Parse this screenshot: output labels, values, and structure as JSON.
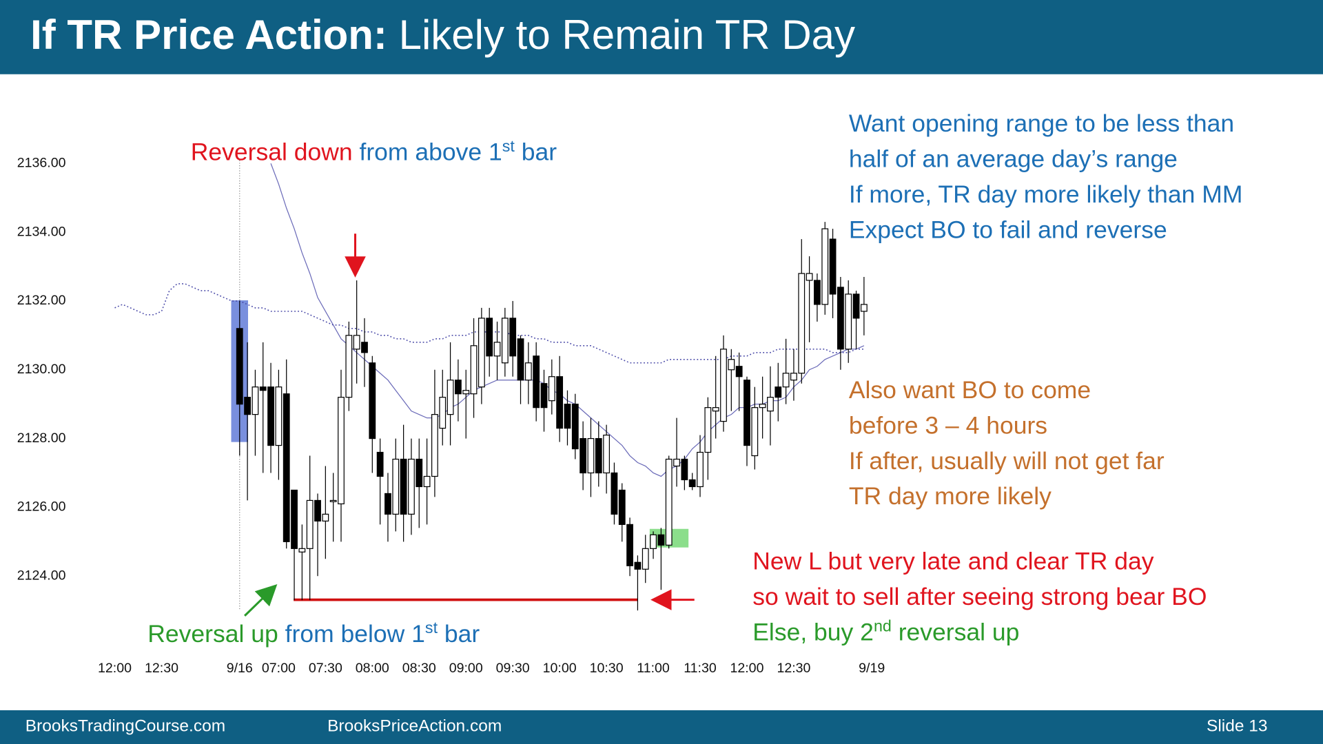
{
  "slide": {
    "title_bold": "If TR Price Action:",
    "title_rest": "Likely to Remain TR Day",
    "footer_left": "BrooksTradingCourse.com",
    "footer_middle": "BrooksPriceAction.com",
    "footer_right": "Slide  13"
  },
  "chart_data": {
    "type": "candlestick",
    "categories": [
      "12:00",
      null,
      null,
      null,
      null,
      null,
      "12:30",
      null,
      null,
      null,
      null,
      null,
      null,
      null,
      null,
      null,
      "9/16",
      null,
      null,
      null,
      null,
      "07:00",
      null,
      null,
      null,
      null,
      null,
      "07:30",
      null,
      null,
      null,
      null,
      null,
      "08:00",
      null,
      null,
      null,
      null,
      null,
      "08:30",
      null,
      null,
      null,
      null,
      null,
      "09:00",
      null,
      null,
      null,
      null,
      null,
      "09:30",
      null,
      null,
      null,
      null,
      null,
      "10:00",
      null,
      null,
      null,
      null,
      null,
      "10:30",
      null,
      null,
      null,
      null,
      null,
      "11:00",
      null,
      null,
      null,
      null,
      null,
      "11:30",
      null,
      null,
      null,
      null,
      null,
      "12:00",
      null,
      null,
      null,
      null,
      null,
      "12:30",
      null,
      null,
      null,
      null,
      null,
      null,
      null,
      null,
      null,
      "9/19"
    ],
    "open": [
      null,
      null,
      null,
      null,
      null,
      null,
      null,
      null,
      null,
      null,
      null,
      null,
      null,
      null,
      null,
      null,
      2131.2,
      2129.2,
      2128.7,
      2129.5,
      2129.5,
      2127.8,
      2129.3,
      2126.5,
      2124.7,
      2124.8,
      2126.2,
      2125.6,
      2126.2,
      2126.1,
      2129.2,
      2130.6,
      2130.8,
      2130.2,
      2127.6,
      2126.4,
      2125.8,
      2127.4,
      2125.8,
      2127.4,
      2126.6,
      2126.9,
      2128.3,
      2128.7,
      2129.7,
      2129.3,
      2129.3,
      2129.5,
      2131.5,
      2130.4,
      2130.2,
      2131.5,
      2130.9,
      2129.7,
      2130.4,
      2129.6,
      2129.1,
      2129.8,
      2129.0,
      2129.0,
      2128.0,
      2127.0,
      2128.0,
      2127.0,
      2127.0,
      2126.5,
      2125.5,
      2124.4,
      2124.2,
      2124.8,
      2125.2,
      2124.9,
      2127.2,
      2127.4,
      2126.8,
      2126.6,
      2127.6,
      2128.8,
      2128.5,
      2130.0,
      2130.1,
      2129.7,
      2127.5,
      2128.9,
      2128.8,
      2129.5,
      2129.5,
      2129.7,
      2129.9,
      2132.6,
      2132.6,
      2131.9,
      2133.8,
      2132.4,
      2130.6,
      2132.2,
      2131.7,
      null
    ],
    "high": [
      null,
      null,
      null,
      null,
      null,
      null,
      null,
      null,
      null,
      null,
      null,
      null,
      null,
      null,
      null,
      null,
      2132.0,
      2130.8,
      2130.0,
      2130.8,
      2130.2,
      2130.0,
      2130.3,
      2126.5,
      2125.5,
      2127.5,
      2126.4,
      2127.2,
      2127.0,
      2130.0,
      2131.4,
      2132.6,
      2131.5,
      2130.4,
      2128.0,
      2127.0,
      2128.0,
      2128.4,
      2128.0,
      2128.0,
      2128.0,
      2130.0,
      2130.0,
      2130.8,
      2130.3,
      2130.0,
      2131.5,
      2131.8,
      2131.8,
      2131.4,
      2131.8,
      2132.0,
      2131.0,
      2130.8,
      2130.8,
      2130.0,
      2130.3,
      2130.4,
      2129.4,
      2129.3,
      2128.5,
      2128.6,
      2128.5,
      2128.4,
      2127.3,
      2126.7,
      2125.7,
      2124.6,
      2125.2,
      2125.3,
      2125.4,
      2127.5,
      2128.6,
      2127.5,
      2127.0,
      2128.1,
      2129.2,
      2130.4,
      2131.0,
      2130.6,
      2130.5,
      2129.8,
      2129.5,
      2129.8,
      2130.1,
      2130.2,
      2130.9,
      2130.6,
      2133.8,
      2133.3,
      2132.8,
      2134.3,
      2134.1,
      2132.7,
      2132.6,
      2132.3,
      2132.7,
      null
    ],
    "low": [
      null,
      null,
      null,
      null,
      null,
      null,
      null,
      null,
      null,
      null,
      null,
      null,
      null,
      null,
      null,
      null,
      2127.5,
      2126.2,
      2127.5,
      2127.0,
      2127.0,
      2126.8,
      2124.8,
      2123.3,
      2123.3,
      2123.3,
      2124.0,
      2124.5,
      2125.0,
      2125.0,
      2128.8,
      2129.6,
      2129.5,
      2127.0,
      2125.5,
      2125.0,
      2125.3,
      2125.0,
      2125.2,
      2125.4,
      2125.5,
      2126.3,
      2127.8,
      2127.8,
      2128.5,
      2128.0,
      2128.6,
      2129.0,
      2129.8,
      2129.7,
      2129.8,
      2129.8,
      2129.0,
      2129.0,
      2128.5,
      2128.2,
      2128.7,
      2127.9,
      2127.8,
      2127.4,
      2126.5,
      2126.3,
      2126.6,
      2126.4,
      2125.5,
      2125.0,
      2124.0,
      2123.0,
      2123.8,
      2124.5,
      2123.6,
      2124.8,
      2126.6,
      2126.5,
      2126.5,
      2126.3,
      2126.8,
      2128.0,
      2128.2,
      2128.8,
      2128.8,
      2127.2,
      2127.1,
      2128.0,
      2127.8,
      2128.5,
      2129.0,
      2129.1,
      2129.6,
      2130.8,
      2131.4,
      2131.6,
      2131.5,
      2130.0,
      2130.2,
      2130.6,
      2131.0,
      null
    ],
    "close": [
      null,
      null,
      null,
      null,
      null,
      null,
      null,
      null,
      null,
      null,
      null,
      null,
      null,
      null,
      null,
      null,
      2129.0,
      2128.7,
      2129.5,
      2129.4,
      2127.8,
      2129.5,
      2125.0,
      2124.8,
      2124.8,
      2126.2,
      2125.6,
      2125.8,
      2126.2,
      2129.2,
      2131.0,
      2131.0,
      2130.5,
      2128.0,
      2126.9,
      2125.8,
      2127.4,
      2125.8,
      2127.4,
      2126.6,
      2126.9,
      2128.7,
      2129.2,
      2129.7,
      2129.3,
      2129.4,
      2130.7,
      2131.5,
      2130.4,
      2130.8,
      2131.5,
      2130.4,
      2129.7,
      2130.2,
      2128.9,
      2128.9,
      2129.8,
      2128.3,
      2128.3,
      2127.7,
      2127.0,
      2128.0,
      2127.0,
      2128.1,
      2125.8,
      2125.5,
      2124.3,
      2124.2,
      2124.8,
      2125.2,
      2124.9,
      2127.4,
      2127.4,
      2126.8,
      2126.6,
      2127.6,
      2128.9,
      2128.9,
      2130.6,
      2130.3,
      2129.8,
      2127.8,
      2128.9,
      2129.0,
      2129.2,
      2129.2,
      2129.9,
      2129.9,
      2132.8,
      2132.8,
      2131.9,
      2134.1,
      2132.2,
      2130.6,
      2132.2,
      2131.5,
      2131.9,
      null
    ],
    "up_color": "#ffffff",
    "down_color": "#000000",
    "lines": [
      {
        "color": "#6a6ab8",
        "style": "solid",
        "values": [
          null,
          null,
          null,
          null,
          null,
          null,
          null,
          null,
          null,
          null,
          null,
          null,
          null,
          null,
          null,
          null,
          null,
          null,
          null,
          null,
          2136.0,
          2135.4,
          2134.7,
          2134.1,
          2133.4,
          2132.8,
          2132.1,
          2131.7,
          2131.3,
          2130.9,
          2130.7,
          2130.5,
          2130.3,
          2130.1,
          2129.9,
          2129.7,
          2129.4,
          2129.1,
          2128.8,
          2128.7,
          2128.6,
          2128.6,
          2128.7,
          2128.9,
          2129.0,
          2129.2,
          2129.4,
          2129.5,
          2129.6,
          2129.7,
          2129.7,
          2129.7,
          2129.7,
          2129.7,
          2129.7,
          2129.6,
          2129.4,
          2129.3,
          2129.1,
          2129.0,
          2128.8,
          2128.6,
          2128.4,
          2128.2,
          2128.0,
          2127.8,
          2127.5,
          2127.3,
          2127.2,
          2127.0,
          2126.9,
          2127.1,
          2127.2,
          2127.4,
          2127.7,
          2127.9,
          2128.2,
          2128.4,
          2128.6,
          2128.7,
          2128.9,
          2128.9,
          2129.0,
          2129.0,
          2129.1,
          2129.1,
          2129.2,
          2129.5,
          2129.7,
          2130.0,
          2130.1,
          2130.3,
          2130.4,
          2130.5,
          2130.6,
          2130.6,
          2130.7,
          null
        ]
      },
      {
        "color": "#4a4aa8",
        "style": "dotted",
        "values": [
          2131.8,
          2131.9,
          2131.8,
          2131.7,
          2131.6,
          2131.6,
          2131.7,
          2132.3,
          2132.5,
          2132.5,
          2132.4,
          2132.3,
          2132.3,
          2132.2,
          2132.1,
          2132.0,
          2132.0,
          2131.9,
          2131.8,
          2131.8,
          2131.7,
          2131.7,
          2131.7,
          2131.7,
          2131.7,
          2131.6,
          2131.5,
          2131.4,
          2131.3,
          2131.3,
          2131.2,
          2131.2,
          2131.1,
          2131.1,
          2131.0,
          2131.0,
          2130.9,
          2130.9,
          2130.8,
          2130.8,
          2130.8,
          2130.9,
          2130.9,
          2131.0,
          2131.0,
          2131.0,
          2131.1,
          2131.1,
          2131.1,
          2131.1,
          2131.1,
          2131.0,
          2131.0,
          2131.0,
          2130.9,
          2130.9,
          2130.8,
          2130.8,
          2130.8,
          2130.7,
          2130.7,
          2130.7,
          2130.6,
          2130.5,
          2130.4,
          2130.3,
          2130.2,
          2130.2,
          2130.2,
          2130.2,
          2130.2,
          2130.3,
          2130.3,
          2130.3,
          2130.3,
          2130.3,
          2130.3,
          2130.3,
          2130.3,
          2130.4,
          2130.4,
          2130.4,
          2130.5,
          2130.5,
          2130.5,
          2130.6,
          2130.6,
          2130.6,
          2130.6,
          2130.6,
          2130.6,
          2130.6,
          2130.5,
          2130.5,
          2130.5,
          2130.6,
          2130.6,
          null
        ]
      }
    ],
    "ylim": [
      2122.6,
      2138.3
    ],
    "yticks": [
      {
        "value": 2124,
        "label": "2124.00"
      },
      {
        "value": 2126,
        "label": "2126.00"
      },
      {
        "value": 2128,
        "label": "2128.00"
      },
      {
        "value": 2130,
        "label": "2130.00"
      },
      {
        "value": 2132,
        "label": "2132.00"
      },
      {
        "value": 2134,
        "label": "2134.00"
      },
      {
        "value": 2136,
        "label": "2136.00"
      }
    ],
    "grid": false,
    "annotations": [
      {
        "lines": [
          [
            {
              "text": "Reversal down ",
              "color": "#e0141e"
            },
            {
              "text": "from above 1",
              "color": "#1c6fb5"
            },
            {
              "text": "st",
              "color": "#1c6fb5",
              "sup": true
            },
            {
              "text": " bar",
              "color": "#1c6fb5"
            }
          ]
        ]
      },
      {
        "lines": [
          [
            {
              "text": "Reversal up ",
              "color": "#2a9a2a"
            },
            {
              "text": "from below 1",
              "color": "#1c6fb5"
            },
            {
              "text": "st",
              "color": "#1c6fb5",
              "sup": true
            },
            {
              "text": " bar",
              "color": "#1c6fb5"
            }
          ]
        ]
      },
      {
        "lines": [
          [
            {
              "text": "Want opening range to be less than",
              "color": "#1c6fb5"
            }
          ],
          [
            {
              "text": "half of an average day’s range",
              "color": "#1c6fb5"
            }
          ],
          [
            {
              "text": "If more, TR day more likely than MM",
              "color": "#1c6fb5"
            }
          ],
          [
            {
              "text": "Expect BO to fail and reverse",
              "color": "#1c6fb5"
            }
          ]
        ]
      },
      {
        "lines": [
          [
            {
              "text": "Also want BO to come",
              "color": "#c4702c"
            }
          ],
          [
            {
              "text": "before 3 – 4 hours",
              "color": "#c4702c"
            }
          ],
          [
            {
              "text": "If after, usually will not get far",
              "color": "#c4702c"
            }
          ],
          [
            {
              "text": "TR day more likely",
              "color": "#c4702c"
            }
          ]
        ]
      },
      {
        "lines": [
          [
            {
              "text": "New L but very late and clear TR day",
              "color": "#e0141e"
            }
          ],
          [
            {
              "text": "so wait to sell after seeing strong bear BO",
              "color": "#e0141e"
            }
          ],
          [
            {
              "text": "Else, buy 2",
              "color": "#2a9a2a"
            },
            {
              "text": "nd",
              "color": "#2a9a2a",
              "sup": true
            },
            {
              "text": " reversal up",
              "color": "#2a9a2a"
            }
          ]
        ]
      }
    ]
  }
}
